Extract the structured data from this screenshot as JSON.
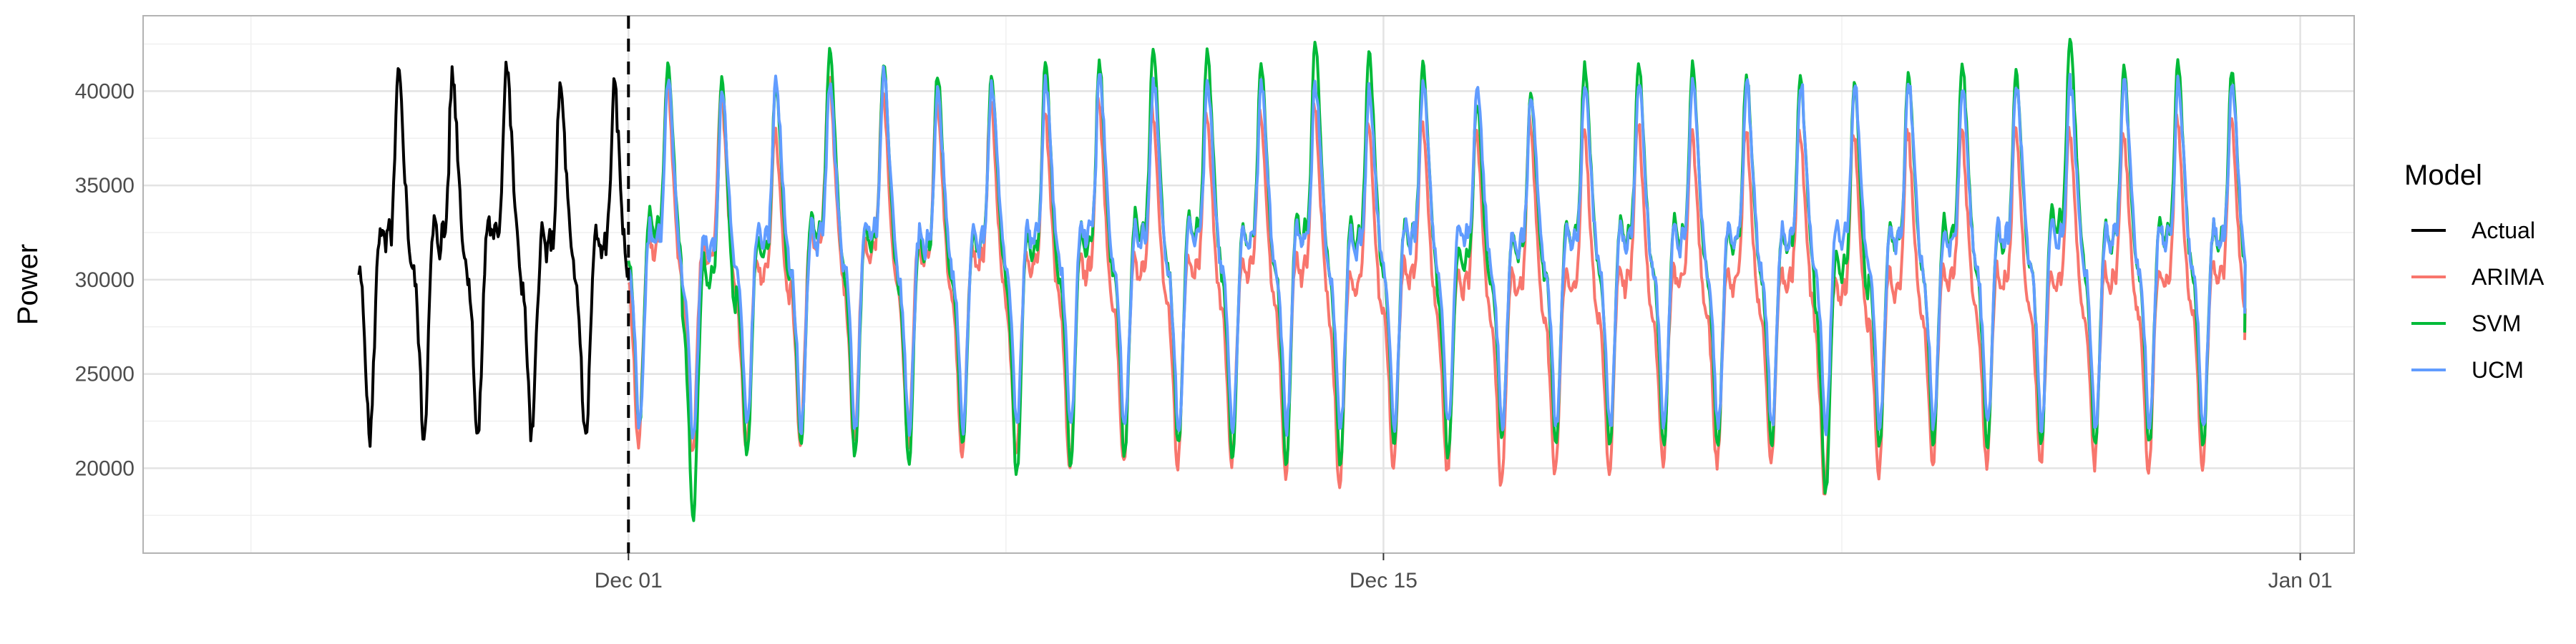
{
  "chart_data": {
    "type": "line",
    "title": "",
    "xlabel": "",
    "ylabel": "Power",
    "grid": true,
    "legend_title": "Model",
    "legend_position": "right",
    "x_axis_type": "date",
    "x_range": [
      "2024-11-22",
      "2025-01-02"
    ],
    "ylim": [
      15500,
      44000
    ],
    "x_ticks": [
      {
        "date": "2024-12-01",
        "label": "Dec 01"
      },
      {
        "date": "2024-12-15",
        "label": "Dec 15"
      },
      {
        "date": "2025-01-01",
        "label": "Jan 01"
      }
    ],
    "y_ticks": [
      20000,
      25000,
      30000,
      35000,
      40000
    ],
    "forecast_start": "2024-12-01",
    "forecast_end": "2024-12-30",
    "actual_start": "2024-11-26",
    "series": [
      {
        "name": "Actual",
        "color": "#000000"
      },
      {
        "name": "ARIMA",
        "color": "#F8766D"
      },
      {
        "name": "SVM",
        "color": "#00BA38"
      },
      {
        "name": "UCM",
        "color": "#619CFF"
      }
    ],
    "actual_daily": {
      "dates": [
        "2024-11-26",
        "2024-11-27",
        "2024-11-28",
        "2024-11-29",
        "2024-11-30"
      ],
      "min": [
        21500,
        21600,
        21400,
        21500,
        21400
      ],
      "max": [
        40800,
        40900,
        41500,
        40200,
        40100
      ]
    },
    "forecast_daily": {
      "dates": [
        "2024-12-01",
        "2024-12-02",
        "2024-12-03",
        "2024-12-04",
        "2024-12-05",
        "2024-12-06",
        "2024-12-07",
        "2024-12-08",
        "2024-12-09",
        "2024-12-10",
        "2024-12-11",
        "2024-12-12",
        "2024-12-13",
        "2024-12-14",
        "2024-12-15",
        "2024-12-16",
        "2024-12-17",
        "2024-12-18",
        "2024-12-19",
        "2024-12-20",
        "2024-12-21",
        "2024-12-22",
        "2024-12-23",
        "2024-12-24",
        "2024-12-25",
        "2024-12-26",
        "2024-12-27",
        "2024-12-28",
        "2024-12-29",
        "2024-12-30"
      ],
      "ARIMA_max": [
        40500,
        40000,
        38000,
        41000,
        40000,
        39500,
        39500,
        39000,
        39500,
        39000,
        39000,
        39000,
        39500,
        38500,
        38500,
        38000,
        38500,
        38000,
        38500,
        38000,
        38000,
        38000,
        38000,
        38000,
        38000,
        38000,
        38000,
        38000,
        38500,
        38500
      ],
      "ARIMA_min": [
        21000,
        20500,
        21000,
        21000,
        21000,
        21000,
        20500,
        20500,
        19500,
        20000,
        20000,
        20000,
        19500,
        19000,
        20000,
        19500,
        18800,
        19500,
        19500,
        20000,
        20000,
        20000,
        18500,
        19500,
        20000,
        20000,
        20000,
        20000,
        19500,
        20000
      ],
      "SVM_max": [
        41500,
        40800,
        40500,
        42200,
        41500,
        41000,
        40800,
        41500,
        41500,
        42500,
        42200,
        41500,
        42800,
        42200,
        41500,
        39500,
        39800,
        41500,
        41500,
        41500,
        41000,
        40800,
        40500,
        41000,
        41500,
        41000,
        42800,
        41200,
        41500,
        41200
      ],
      "SVM_min": [
        22000,
        17000,
        20500,
        21000,
        20500,
        20000,
        21000,
        19500,
        20000,
        20500,
        21000,
        20500,
        20000,
        20000,
        21000,
        20500,
        21500,
        21000,
        21000,
        21000,
        21000,
        21000,
        18500,
        21000,
        21000,
        21000,
        21000,
        21000,
        21000,
        21000
      ],
      "UCM_max": [
        40500,
        40000,
        40500,
        40500,
        41000,
        40000,
        40500,
        40500,
        41000,
        40500,
        40500,
        40500,
        40500,
        40000,
        40500,
        40500,
        40000,
        40500,
        40500,
        40500,
        40500,
        40500,
        40500,
        40500,
        40000,
        40500,
        40500,
        40500,
        40500,
        40500
      ],
      "UCM_min": [
        22000,
        21500,
        22000,
        22000,
        22000,
        22000,
        22000,
        22000,
        22000,
        22000,
        22000,
        22000,
        22000,
        22000,
        22000,
        22000,
        22000,
        22000,
        22000,
        22000,
        22000,
        22000,
        22000,
        22000,
        22000,
        22000,
        22000,
        22000,
        22000,
        22000
      ]
    }
  }
}
